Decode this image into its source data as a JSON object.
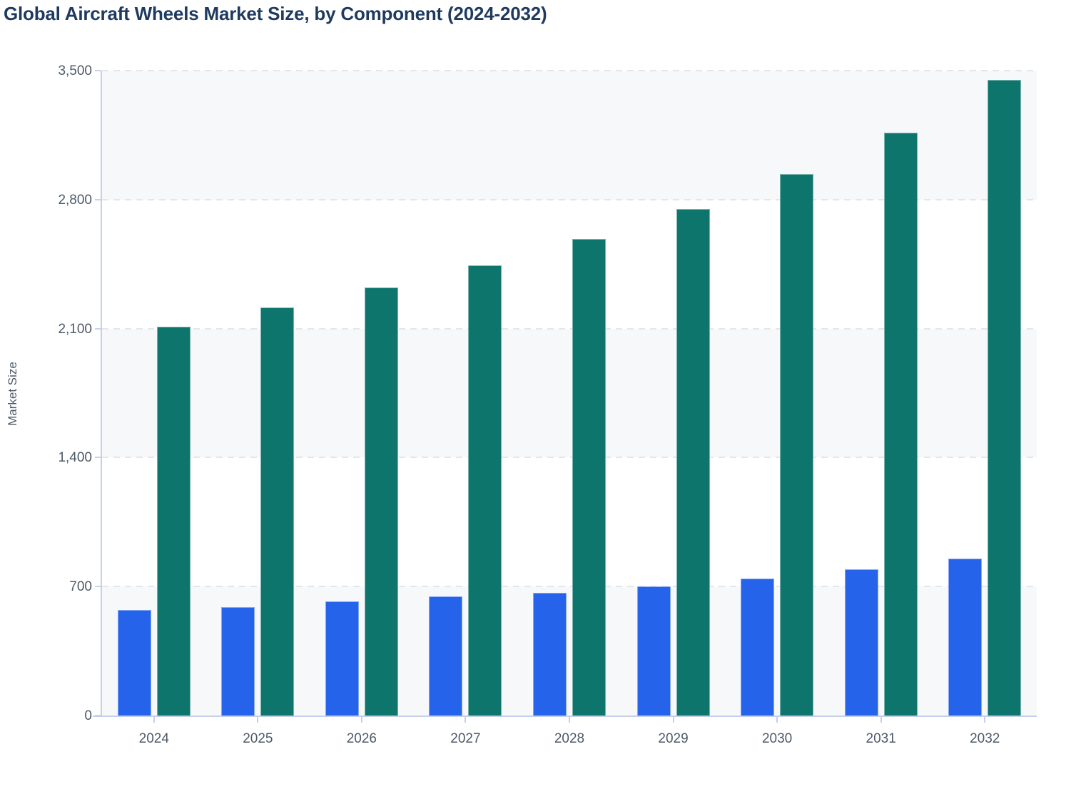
{
  "title": "Global Aircraft Wheels Market Size, by Component (2024-2032)",
  "colors": {
    "title_text": "#1e3a5f",
    "tick_label_text": "#4d5968",
    "axis_line": "#c3cfed",
    "grid_line": "#e3e6ea",
    "band_shade": "#f7f8fa",
    "band_plain": "#ffffff",
    "series_1": "#2563eb",
    "series_2": "#0e756d"
  },
  "chart_data": {
    "type": "bar",
    "title": "Global Aircraft Wheels Market Size, by Component (2024-2032)",
    "categories": [
      "2024",
      "2025",
      "2026",
      "2027",
      "2028",
      "2029",
      "2030",
      "2031",
      "2032"
    ],
    "series": [
      {
        "name": "",
        "color": "#2563eb",
        "values": [
          575,
          590,
          620,
          645,
          665,
          700,
          745,
          795,
          850
        ]
      },
      {
        "name": "",
        "color": "#0e756d",
        "values": [
          2110,
          2215,
          2325,
          2445,
          2585,
          2750,
          2940,
          3165,
          3450
        ]
      }
    ],
    "xlabel": "",
    "ylabel": "Market Size",
    "ylim": [
      0,
      3500
    ],
    "ytick_step": 700,
    "ytick_labels": [
      "0",
      "700",
      "1,400",
      "2,100",
      "2,800",
      "3,500"
    ],
    "grid": "horizontal-dashed",
    "plot_bands": "alternating-shaded",
    "legend_position": "none"
  }
}
